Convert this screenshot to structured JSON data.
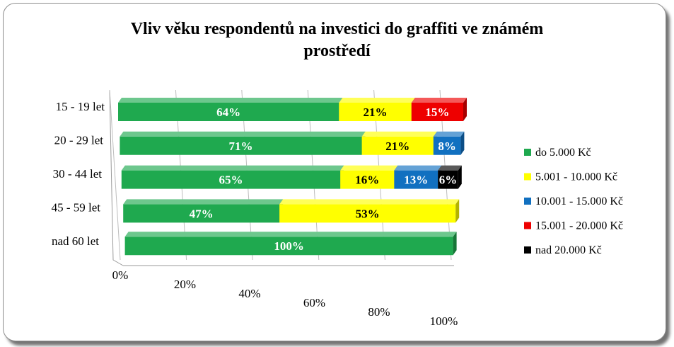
{
  "chart_data": {
    "type": "bar",
    "orientation": "horizontal",
    "stacked": "percent",
    "title": "Vliv věku respondentů na investici do graffiti ve známém prostředí",
    "categories": [
      "15 - 19 let",
      "20 - 29 let",
      "30 - 44 let",
      "45 - 59 let",
      "nad 60 let"
    ],
    "series": [
      {
        "name": "do 5.000 Kč",
        "color": "#1fa94f",
        "values": [
          64,
          71,
          65,
          47,
          100
        ]
      },
      {
        "name": "5.001 - 10.000 Kč",
        "color": "#ffff00",
        "values": [
          21,
          21,
          16,
          53,
          0
        ]
      },
      {
        "name": "10.001 - 15.000 Kč",
        "color": "#1170c0",
        "values": [
          0,
          8,
          13,
          0,
          0
        ]
      },
      {
        "name": "15.001 - 20.000 Kč",
        "color": "#ee0000",
        "values": [
          15,
          0,
          0,
          0,
          0
        ]
      },
      {
        "name": "nad 20.000 Kč",
        "color": "#000000",
        "values": [
          0,
          0,
          6,
          0,
          0
        ]
      }
    ],
    "data_labels": [
      "64%",
      "21%",
      "15%",
      "71%",
      "21%",
      "8%",
      "65%",
      "16%",
      "13%",
      "6%",
      "47%",
      "53%",
      "100%"
    ],
    "x_ticks": [
      "0%",
      "20%",
      "40%",
      "60%",
      "80%",
      "100%"
    ],
    "xlim": [
      0,
      100
    ],
    "legend_position": "right",
    "grid": true
  }
}
